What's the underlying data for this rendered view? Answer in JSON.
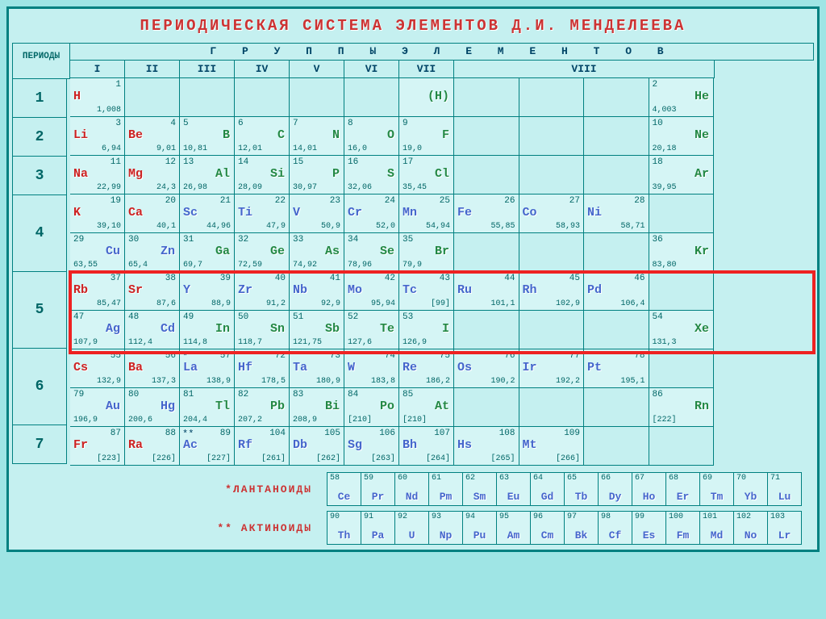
{
  "title": "ПЕРИОДИЧЕСКАЯ СИСТЕМА ЭЛЕМЕНТОВ Д.И. МЕНДЕЛЕЕВА",
  "periods_label": "ПЕРИОДЫ",
  "groups_label": "Г Р У П П Ы    Э Л Е М Е Н Т О В",
  "group_nums": [
    "I",
    "II",
    "III",
    "IV",
    "V",
    "VI",
    "VII",
    "VIII"
  ],
  "period_nums": [
    "1",
    "2",
    "3",
    "4",
    "5",
    "6",
    "7"
  ],
  "lanthanide_label": "*ЛАНТАНОИДЫ",
  "actinide_label": "** АКТИНОИДЫ",
  "highlight_period": 5,
  "colors": {
    "red": "#cc2222",
    "blue": "#4466cc",
    "green": "#228844",
    "orange": "#dd7722",
    "grey": "#666666",
    "bg": "#c5f0f0",
    "cell_bg": "#d5f5f5",
    "border": "#008080",
    "highlight_border": "#ee2222"
  },
  "rows": [
    [
      {
        "sym": "H",
        "num": "1",
        "mass": "1,008",
        "c": "red",
        "a": "l"
      },
      null,
      null,
      null,
      null,
      null,
      {
        "sym": "(H)",
        "num": "",
        "mass": "",
        "c": "green",
        "a": "r"
      },
      null,
      null,
      null,
      {
        "sym": "He",
        "num": "2",
        "mass": "4,003",
        "c": "green",
        "a": "r"
      }
    ],
    [
      {
        "sym": "Li",
        "num": "3",
        "mass": "6,94",
        "c": "red",
        "a": "l"
      },
      {
        "sym": "Be",
        "num": "4",
        "mass": "9,01",
        "c": "red",
        "a": "l"
      },
      {
        "sym": "B",
        "num": "5",
        "mass": "10,81",
        "c": "green",
        "a": "r"
      },
      {
        "sym": "C",
        "num": "6",
        "mass": "12,01",
        "c": "green",
        "a": "r"
      },
      {
        "sym": "N",
        "num": "7",
        "mass": "14,01",
        "c": "green",
        "a": "r"
      },
      {
        "sym": "O",
        "num": "8",
        "mass": "16,0",
        "c": "green",
        "a": "r"
      },
      {
        "sym": "F",
        "num": "9",
        "mass": "19,0",
        "c": "green",
        "a": "r"
      },
      null,
      null,
      null,
      {
        "sym": "Ne",
        "num": "10",
        "mass": "20,18",
        "c": "green",
        "a": "r"
      }
    ],
    [
      {
        "sym": "Na",
        "num": "11",
        "mass": "22,99",
        "c": "red",
        "a": "l"
      },
      {
        "sym": "Mg",
        "num": "12",
        "mass": "24,3",
        "c": "red",
        "a": "l"
      },
      {
        "sym": "Al",
        "num": "13",
        "mass": "26,98",
        "c": "green",
        "a": "r"
      },
      {
        "sym": "Si",
        "num": "14",
        "mass": "28,09",
        "c": "green",
        "a": "r"
      },
      {
        "sym": "P",
        "num": "15",
        "mass": "30,97",
        "c": "green",
        "a": "r"
      },
      {
        "sym": "S",
        "num": "16",
        "mass": "32,06",
        "c": "green",
        "a": "r"
      },
      {
        "sym": "Cl",
        "num": "17",
        "mass": "35,45",
        "c": "green",
        "a": "r"
      },
      null,
      null,
      null,
      {
        "sym": "Ar",
        "num": "18",
        "mass": "39,95",
        "c": "green",
        "a": "r"
      }
    ],
    [
      {
        "sym": "K",
        "num": "19",
        "mass": "39,10",
        "c": "red",
        "a": "l"
      },
      {
        "sym": "Ca",
        "num": "20",
        "mass": "40,1",
        "c": "red",
        "a": "l"
      },
      {
        "sym": "Sc",
        "num": "21",
        "mass": "44,96",
        "c": "blue",
        "a": "l"
      },
      {
        "sym": "Ti",
        "num": "22",
        "mass": "47,9",
        "c": "blue",
        "a": "l"
      },
      {
        "sym": "V",
        "num": "23",
        "mass": "50,9",
        "c": "blue",
        "a": "l"
      },
      {
        "sym": "Cr",
        "num": "24",
        "mass": "52,0",
        "c": "blue",
        "a": "l"
      },
      {
        "sym": "Mn",
        "num": "25",
        "mass": "54,94",
        "c": "blue",
        "a": "l"
      },
      {
        "sym": "Fe",
        "num": "26",
        "mass": "55,85",
        "c": "blue",
        "a": "l"
      },
      {
        "sym": "Co",
        "num": "27",
        "mass": "58,93",
        "c": "blue",
        "a": "l"
      },
      {
        "sym": "Ni",
        "num": "28",
        "mass": "58,71",
        "c": "blue",
        "a": "l"
      },
      null
    ],
    [
      {
        "sym": "Cu",
        "num": "29",
        "mass": "63,55",
        "c": "blue",
        "a": "r"
      },
      {
        "sym": "Zn",
        "num": "30",
        "mass": "65,4",
        "c": "blue",
        "a": "r"
      },
      {
        "sym": "Ga",
        "num": "31",
        "mass": "69,7",
        "c": "green",
        "a": "r"
      },
      {
        "sym": "Ge",
        "num": "32",
        "mass": "72,59",
        "c": "green",
        "a": "r"
      },
      {
        "sym": "As",
        "num": "33",
        "mass": "74,92",
        "c": "green",
        "a": "r"
      },
      {
        "sym": "Se",
        "num": "34",
        "mass": "78,96",
        "c": "green",
        "a": "r"
      },
      {
        "sym": "Br",
        "num": "35",
        "mass": "79,9",
        "c": "green",
        "a": "r"
      },
      null,
      null,
      null,
      {
        "sym": "Kr",
        "num": "36",
        "mass": "83,80",
        "c": "green",
        "a": "r"
      }
    ],
    [
      {
        "sym": "Rb",
        "num": "37",
        "mass": "85,47",
        "c": "red",
        "a": "l"
      },
      {
        "sym": "Sr",
        "num": "38",
        "mass": "87,6",
        "c": "red",
        "a": "l"
      },
      {
        "sym": "Y",
        "num": "39",
        "mass": "88,9",
        "c": "blue",
        "a": "l"
      },
      {
        "sym": "Zr",
        "num": "40",
        "mass": "91,2",
        "c": "blue",
        "a": "l"
      },
      {
        "sym": "Nb",
        "num": "41",
        "mass": "92,9",
        "c": "blue",
        "a": "l"
      },
      {
        "sym": "Mo",
        "num": "42",
        "mass": "95,94",
        "c": "blue",
        "a": "l"
      },
      {
        "sym": "Tc",
        "num": "43",
        "mass": "[99]",
        "c": "blue",
        "a": "l"
      },
      {
        "sym": "Ru",
        "num": "44",
        "mass": "101,1",
        "c": "blue",
        "a": "l"
      },
      {
        "sym": "Rh",
        "num": "45",
        "mass": "102,9",
        "c": "blue",
        "a": "l"
      },
      {
        "sym": "Pd",
        "num": "46",
        "mass": "106,4",
        "c": "blue",
        "a": "l"
      },
      null
    ],
    [
      {
        "sym": "Ag",
        "num": "47",
        "mass": "107,9",
        "c": "blue",
        "a": "r"
      },
      {
        "sym": "Cd",
        "num": "48",
        "mass": "112,4",
        "c": "blue",
        "a": "r"
      },
      {
        "sym": "In",
        "num": "49",
        "mass": "114,8",
        "c": "green",
        "a": "r"
      },
      {
        "sym": "Sn",
        "num": "50",
        "mass": "118,7",
        "c": "green",
        "a": "r"
      },
      {
        "sym": "Sb",
        "num": "51",
        "mass": "121,75",
        "c": "green",
        "a": "r"
      },
      {
        "sym": "Te",
        "num": "52",
        "mass": "127,6",
        "c": "green",
        "a": "r"
      },
      {
        "sym": "I",
        "num": "53",
        "mass": "126,9",
        "c": "green",
        "a": "r"
      },
      null,
      null,
      null,
      {
        "sym": "Xe",
        "num": "54",
        "mass": "131,3",
        "c": "green",
        "a": "r"
      }
    ],
    [
      {
        "sym": "Cs",
        "num": "55",
        "mass": "132,9",
        "c": "red",
        "a": "l"
      },
      {
        "sym": "Ba",
        "num": "56",
        "mass": "137,3",
        "c": "red",
        "a": "l"
      },
      {
        "sym": "La",
        "num": "57",
        "mass": "138,9",
        "c": "blue",
        "a": "l",
        "star": "*"
      },
      {
        "sym": "Hf",
        "num": "72",
        "mass": "178,5",
        "c": "blue",
        "a": "l"
      },
      {
        "sym": "Ta",
        "num": "73",
        "mass": "180,9",
        "c": "blue",
        "a": "l"
      },
      {
        "sym": "W",
        "num": "74",
        "mass": "183,8",
        "c": "blue",
        "a": "l"
      },
      {
        "sym": "Re",
        "num": "75",
        "mass": "186,2",
        "c": "blue",
        "a": "l"
      },
      {
        "sym": "Os",
        "num": "76",
        "mass": "190,2",
        "c": "blue",
        "a": "l"
      },
      {
        "sym": "Ir",
        "num": "77",
        "mass": "192,2",
        "c": "blue",
        "a": "l"
      },
      {
        "sym": "Pt",
        "num": "78",
        "mass": "195,1",
        "c": "blue",
        "a": "l"
      },
      null
    ],
    [
      {
        "sym": "Au",
        "num": "79",
        "mass": "196,9",
        "c": "blue",
        "a": "r"
      },
      {
        "sym": "Hg",
        "num": "80",
        "mass": "200,6",
        "c": "blue",
        "a": "r"
      },
      {
        "sym": "Tl",
        "num": "81",
        "mass": "204,4",
        "c": "green",
        "a": "r"
      },
      {
        "sym": "Pb",
        "num": "82",
        "mass": "207,2",
        "c": "green",
        "a": "r"
      },
      {
        "sym": "Bi",
        "num": "83",
        "mass": "208,9",
        "c": "green",
        "a": "r"
      },
      {
        "sym": "Po",
        "num": "84",
        "mass": "[210]",
        "c": "green",
        "a": "r"
      },
      {
        "sym": "At",
        "num": "85",
        "mass": "[210]",
        "c": "green",
        "a": "r"
      },
      null,
      null,
      null,
      {
        "sym": "Rn",
        "num": "86",
        "mass": "[222]",
        "c": "green",
        "a": "r"
      }
    ],
    [
      {
        "sym": "Fr",
        "num": "87",
        "mass": "[223]",
        "c": "red",
        "a": "l"
      },
      {
        "sym": "Ra",
        "num": "88",
        "mass": "[226]",
        "c": "red",
        "a": "l"
      },
      {
        "sym": "Ac",
        "num": "89",
        "mass": "[227]",
        "c": "blue",
        "a": "l",
        "star": "**"
      },
      {
        "sym": "Rf",
        "num": "104",
        "mass": "[261]",
        "c": "blue",
        "a": "l"
      },
      {
        "sym": "Db",
        "num": "105",
        "mass": "[262]",
        "c": "blue",
        "a": "l"
      },
      {
        "sym": "Sg",
        "num": "106",
        "mass": "[263]",
        "c": "blue",
        "a": "l"
      },
      {
        "sym": "Bh",
        "num": "107",
        "mass": "[264]",
        "c": "blue",
        "a": "l"
      },
      {
        "sym": "Hs",
        "num": "108",
        "mass": "[265]",
        "c": "blue",
        "a": "l"
      },
      {
        "sym": "Mt",
        "num": "109",
        "mass": "[266]",
        "c": "blue",
        "a": "l"
      },
      null,
      null
    ]
  ],
  "lanthanides": [
    {
      "sym": "Ce",
      "num": "58",
      "c": "blue"
    },
    {
      "sym": "Pr",
      "num": "59",
      "c": "blue"
    },
    {
      "sym": "Nd",
      "num": "60",
      "c": "blue"
    },
    {
      "sym": "Pm",
      "num": "61",
      "c": "blue"
    },
    {
      "sym": "Sm",
      "num": "62",
      "c": "blue"
    },
    {
      "sym": "Eu",
      "num": "63",
      "c": "blue"
    },
    {
      "sym": "Gd",
      "num": "64",
      "c": "blue"
    },
    {
      "sym": "Tb",
      "num": "65",
      "c": "blue"
    },
    {
      "sym": "Dy",
      "num": "66",
      "c": "blue"
    },
    {
      "sym": "Ho",
      "num": "67",
      "c": "blue"
    },
    {
      "sym": "Er",
      "num": "68",
      "c": "blue"
    },
    {
      "sym": "Tm",
      "num": "69",
      "c": "blue"
    },
    {
      "sym": "Yb",
      "num": "70",
      "c": "blue"
    },
    {
      "sym": "Lu",
      "num": "71",
      "c": "blue"
    }
  ],
  "actinides": [
    {
      "sym": "Th",
      "num": "90",
      "c": "blue"
    },
    {
      "sym": "Pa",
      "num": "91",
      "c": "blue"
    },
    {
      "sym": "U",
      "num": "92",
      "c": "blue"
    },
    {
      "sym": "Np",
      "num": "93",
      "c": "blue"
    },
    {
      "sym": "Pu",
      "num": "94",
      "c": "blue"
    },
    {
      "sym": "Am",
      "num": "95",
      "c": "blue"
    },
    {
      "sym": "Cm",
      "num": "96",
      "c": "blue"
    },
    {
      "sym": "Bk",
      "num": "97",
      "c": "blue"
    },
    {
      "sym": "Cf",
      "num": "98",
      "c": "blue"
    },
    {
      "sym": "Es",
      "num": "99",
      "c": "blue"
    },
    {
      "sym": "Fm",
      "num": "100",
      "c": "blue"
    },
    {
      "sym": "Md",
      "num": "101",
      "c": "blue"
    },
    {
      "sym": "No",
      "num": "102",
      "c": "blue"
    },
    {
      "sym": "Lr",
      "num": "103",
      "c": "blue"
    }
  ]
}
